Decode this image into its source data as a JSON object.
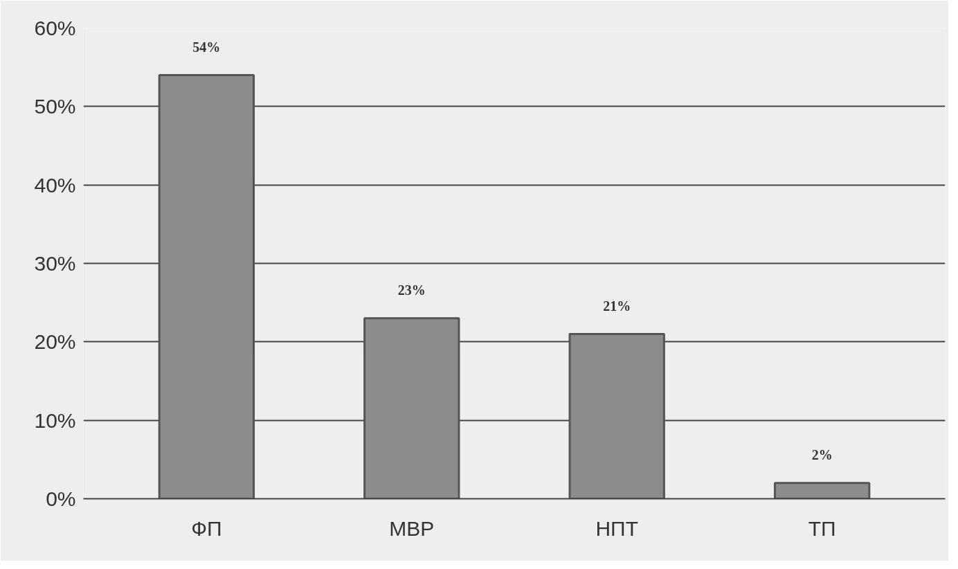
{
  "chart_data": {
    "type": "bar",
    "categories": [
      "ФП",
      "МВР",
      "НПТ",
      "ТП"
    ],
    "values": [
      54,
      23,
      21,
      2
    ],
    "value_labels": [
      "54%",
      "23%",
      "21%",
      "2%"
    ],
    "color": "#8c8c8c",
    "ylim": [
      0,
      60
    ],
    "yticks": [
      {
        "value": 0,
        "label": "0%"
      },
      {
        "value": 10,
        "label": "10%"
      },
      {
        "value": 20,
        "label": "20%"
      },
      {
        "value": 30,
        "label": "30%"
      },
      {
        "value": 40,
        "label": "40%"
      },
      {
        "value": 50,
        "label": "50%"
      },
      {
        "value": 60,
        "label": "60%"
      }
    ],
    "grid": "y"
  }
}
